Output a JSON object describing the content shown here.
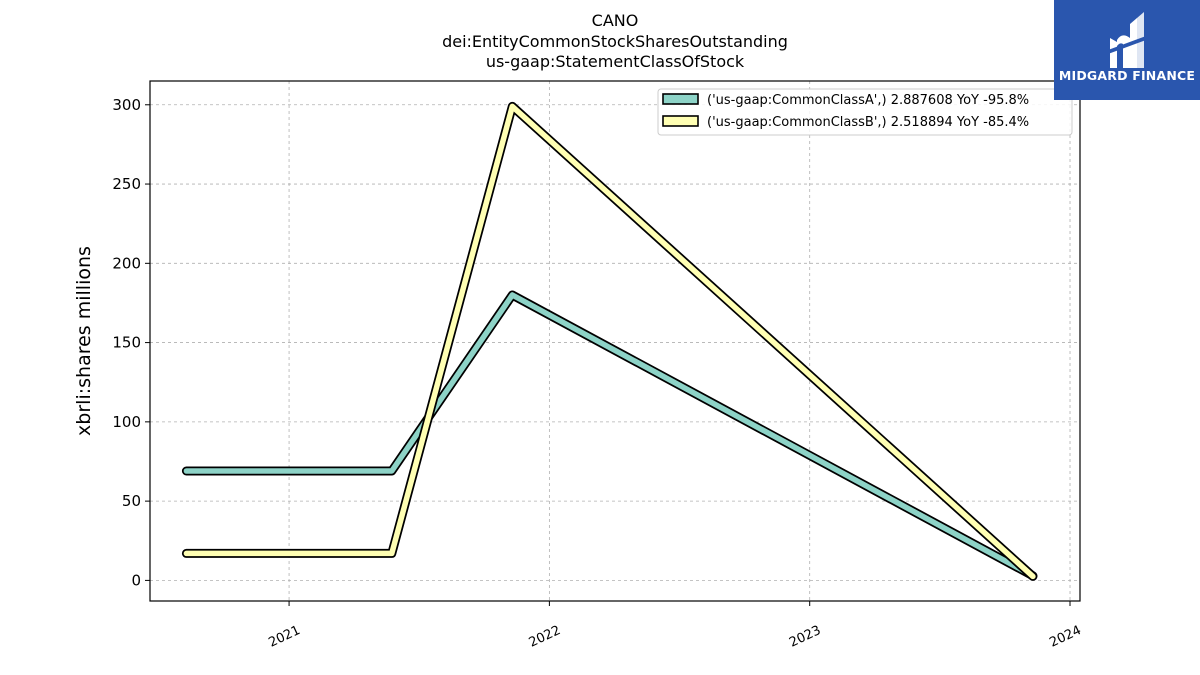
{
  "header": {
    "title_lines": [
      "CANO",
      "dei:EntityCommonStockSharesOutstanding",
      "us-gaap:StatementClassOfStock"
    ]
  },
  "brand": {
    "name": "MIDGARD FINANCE",
    "color": "#2a56ae"
  },
  "chart_data": {
    "type": "line",
    "title": "CANO\ndei:EntityCommonStockSharesOutstanding\nus-gaap:StatementClassOfStock",
    "xlabel": "",
    "ylabel": "xbrli:shares millions",
    "x_ticks": [
      "2021",
      "2022",
      "2023",
      "2024"
    ],
    "y_ticks": [
      "0",
      "50",
      "100",
      "150",
      "200",
      "250",
      "300"
    ],
    "ylim": [
      -13,
      315
    ],
    "xlim": [
      "2020-06-20",
      "2024-01-15"
    ],
    "grid": true,
    "legend_position": "top-right",
    "series": [
      {
        "name": "('us-gaap:CommonClassA',) 2.887608 YoY -95.8%",
        "color": "#8dd3c7",
        "x": [
          "2020-08-10",
          "2021-05-25",
          "2021-11-10",
          "2023-11-10"
        ],
        "values": [
          69,
          69,
          180,
          2.887608
        ]
      },
      {
        "name": "('us-gaap:CommonClassB',) 2.518894 YoY -85.4%",
        "color": "#ffffb3",
        "x": [
          "2020-08-10",
          "2021-05-25",
          "2021-11-10",
          "2023-11-10"
        ],
        "values": [
          17,
          17,
          299,
          2.518894
        ]
      }
    ]
  }
}
